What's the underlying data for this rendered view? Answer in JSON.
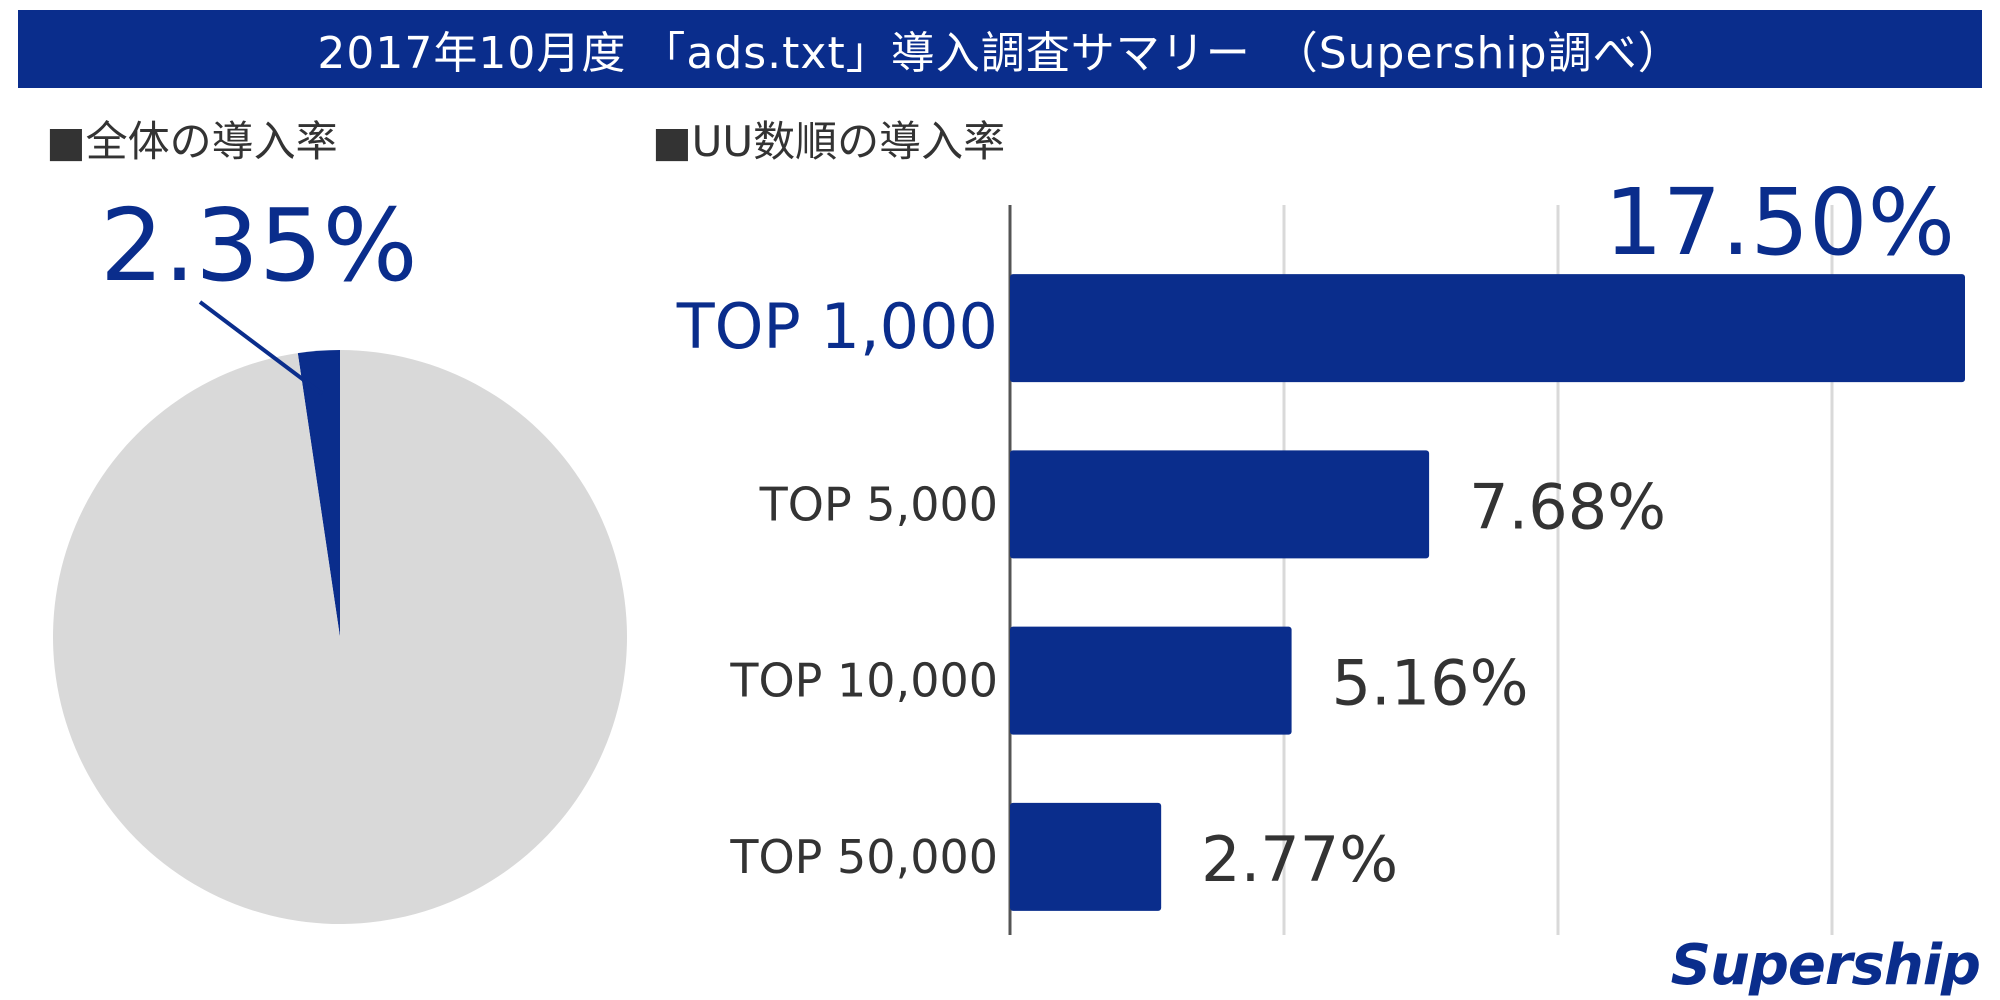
{
  "header": {
    "title": "2017年10月度 「ads.txt」導入調査サマリー　（Supership調べ）"
  },
  "brand": {
    "logo_text": "Supership"
  },
  "colors": {
    "accent": "#0a2d8c",
    "pie_rest": "#d9d9d9",
    "grid": "#d9d9d9",
    "axis": "#555555",
    "text": "#333333"
  },
  "chart_data": [
    {
      "type": "pie",
      "title": "■全体の導入率",
      "slices": [
        {
          "label": "",
          "value": 2.35,
          "display": "2.35%",
          "color": "#0a2d8c"
        },
        {
          "label": "",
          "value": 97.65,
          "display": "",
          "color": "#d9d9d9"
        }
      ]
    },
    {
      "type": "bar",
      "orientation": "horizontal",
      "title": "■UU数順の導入率",
      "categories": [
        "TOP 1,000",
        "TOP 5,000",
        "TOP 10,000",
        "TOP 50,000"
      ],
      "values": [
        17.5,
        7.68,
        5.16,
        2.77
      ],
      "data_labels": [
        "17.50%",
        "7.68%",
        "5.16%",
        "2.77%"
      ],
      "xlim": [
        0,
        17.5
      ],
      "grid": true,
      "highlight_category": "TOP 1,000"
    }
  ]
}
